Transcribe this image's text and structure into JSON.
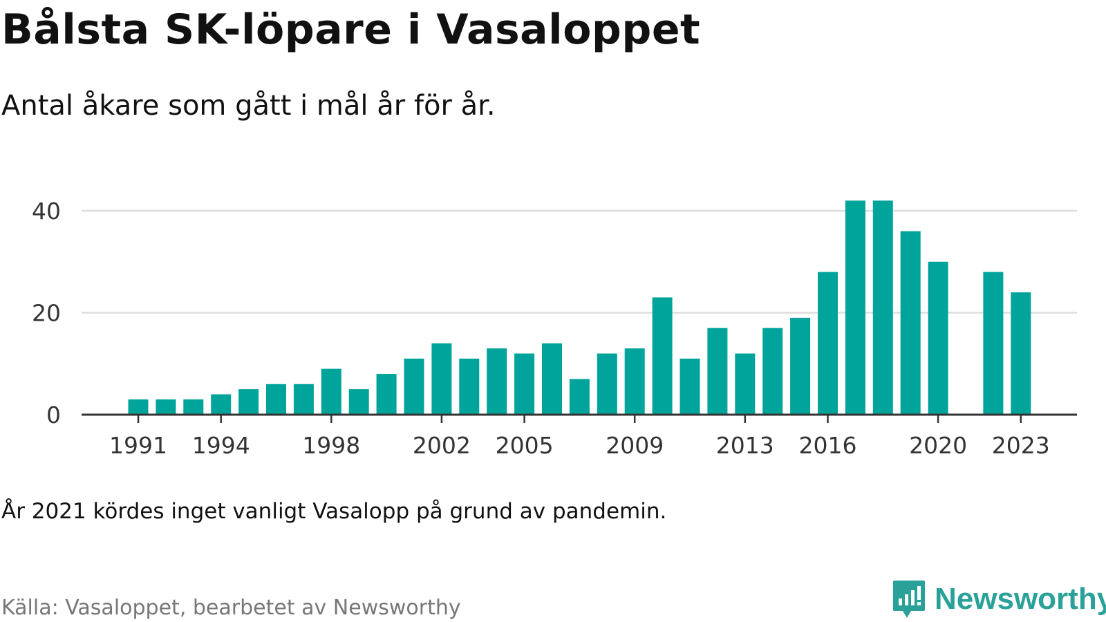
{
  "header": {
    "title": "Bålsta SK-löpare i Vasaloppet",
    "subtitle": "Antal åkare som gått i mål år för år."
  },
  "footer": {
    "note": "År 2021 kördes inget vanligt Vasalopp på grund av pandemin.",
    "source": "Källa: Vasaloppet, bearbetet av Newsworthy",
    "logo_text": "Newsworthy"
  },
  "colors": {
    "bar": "#00a49a",
    "grid": "#dddddd",
    "axis": "#333333",
    "logo": "#2aa198"
  },
  "chart_data": {
    "type": "bar",
    "title": "Bålsta SK-löpare i Vasaloppet",
    "xlabel": "",
    "ylabel": "",
    "ylim": [
      0,
      44
    ],
    "yticks": [
      0,
      20,
      40
    ],
    "xticks": [
      1991,
      1994,
      1998,
      2002,
      2005,
      2009,
      2013,
      2016,
      2020,
      2023
    ],
    "grid": true,
    "categories": [
      1991,
      1992,
      1993,
      1994,
      1995,
      1996,
      1997,
      1998,
      1999,
      2000,
      2001,
      2002,
      2003,
      2004,
      2005,
      2006,
      2007,
      2008,
      2009,
      2010,
      2011,
      2012,
      2013,
      2014,
      2015,
      2016,
      2017,
      2018,
      2019,
      2020,
      2021,
      2022,
      2023
    ],
    "values": [
      3,
      3,
      3,
      4,
      5,
      6,
      6,
      9,
      5,
      8,
      11,
      14,
      11,
      13,
      12,
      14,
      7,
      12,
      13,
      23,
      11,
      17,
      12,
      17,
      19,
      28,
      42,
      42,
      36,
      30,
      null,
      28,
      24
    ]
  }
}
